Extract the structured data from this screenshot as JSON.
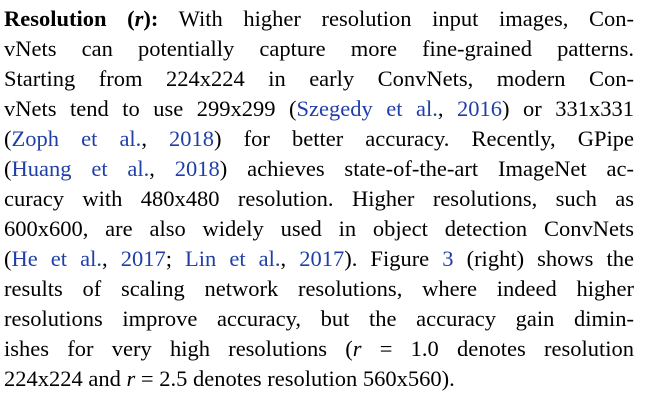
{
  "paragraph": {
    "heading": {
      "label": "Resolution (",
      "symbol": "r",
      "close": "):"
    },
    "lines": [
      {
        "segments": [
          {
            "t": " With higher resolution input images, Con-"
          }
        ]
      },
      {
        "segments": [
          {
            "t": "vNets can potentially capture more fine-grained patterns."
          }
        ]
      },
      {
        "segments": [
          {
            "t": "Starting from 224x224 in early ConvNets, modern Con-"
          }
        ]
      },
      {
        "segments": [
          {
            "t": "vNets tend to use 299x299 ("
          },
          {
            "t": "Szegedy et al.",
            "cite": true
          },
          {
            "t": ", "
          },
          {
            "t": "2016",
            "cite": true
          },
          {
            "t": ") or 331x331"
          }
        ]
      },
      {
        "segments": [
          {
            "t": "("
          },
          {
            "t": "Zoph et al.",
            "cite": true
          },
          {
            "t": ", "
          },
          {
            "t": "2018",
            "cite": true
          },
          {
            "t": ") for better accuracy.  Recently, GPipe"
          }
        ]
      },
      {
        "segments": [
          {
            "t": "("
          },
          {
            "t": "Huang et al.",
            "cite": true
          },
          {
            "t": ", "
          },
          {
            "t": "2018",
            "cite": true
          },
          {
            "t": ") achieves state-of-the-art ImageNet ac-"
          }
        ]
      },
      {
        "segments": [
          {
            "t": "curacy with 480x480 resolution.  Higher resolutions, such as"
          }
        ]
      },
      {
        "segments": [
          {
            "t": "600x600, are also widely used in object detection ConvNets"
          }
        ]
      },
      {
        "segments": [
          {
            "t": "("
          },
          {
            "t": "He et al.",
            "cite": true
          },
          {
            "t": ", "
          },
          {
            "t": "2017",
            "cite": true
          },
          {
            "t": "; "
          },
          {
            "t": "Lin et al.",
            "cite": true
          },
          {
            "t": ", "
          },
          {
            "t": "2017",
            "cite": true
          },
          {
            "t": ").  Figure "
          },
          {
            "t": "3",
            "cite": true
          },
          {
            "t": " (right) shows the"
          }
        ]
      },
      {
        "segments": [
          {
            "t": "results of scaling network resolutions, where indeed higher"
          }
        ]
      },
      {
        "segments": [
          {
            "t": "resolutions improve accuracy, but the accuracy gain dimin-"
          }
        ]
      },
      {
        "segments": [
          {
            "t": "ishes for very high resolutions ("
          },
          {
            "t": "r",
            "math": true
          },
          {
            "t": " = 1.0 denotes resolution"
          }
        ]
      },
      {
        "segments": [
          {
            "t": "224x224 and "
          },
          {
            "t": "r",
            "math": true
          },
          {
            "t": " = 2.5 denotes resolution 560x560)."
          }
        ]
      }
    ]
  }
}
